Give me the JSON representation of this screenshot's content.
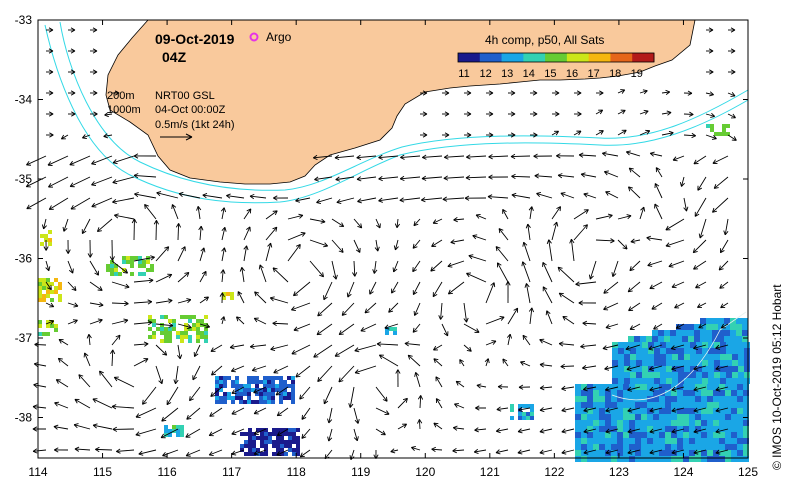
{
  "map": {
    "date": "09-Oct-2019",
    "time": "04Z",
    "argo_label": "Argo",
    "legend_title": "4h comp, p50, All Sats",
    "colorbar_ticks": [
      "11",
      "12",
      "13",
      "14",
      "15",
      "16",
      "17",
      "18",
      "19"
    ],
    "colorbar_colors": [
      "#1a1a8c",
      "#1f5fcc",
      "#1aa6e6",
      "#33d1b3",
      "#66cc33",
      "#cce619",
      "#f5b70f",
      "#e6661a",
      "#b31a1a"
    ],
    "contour_labels": [
      "200m",
      "1000m"
    ],
    "current_info": [
      "NRT00 GSL",
      "04-Oct 00:00Z",
      "0.5m/s (1kt 24h)"
    ],
    "x_ticks": [
      "114",
      "115",
      "116",
      "117",
      "118",
      "119",
      "120",
      "121",
      "122",
      "123",
      "124",
      "125"
    ],
    "y_ticks": [
      "-33",
      "-34",
      "-35",
      "-36",
      "-37",
      "-38"
    ],
    "credit": "© IMOS 10-Oct-2019 05:12 Hobart",
    "colors": {
      "land": "#f9c99c",
      "isobath": "#33d9e6",
      "argo": "#e633e6"
    }
  }
}
